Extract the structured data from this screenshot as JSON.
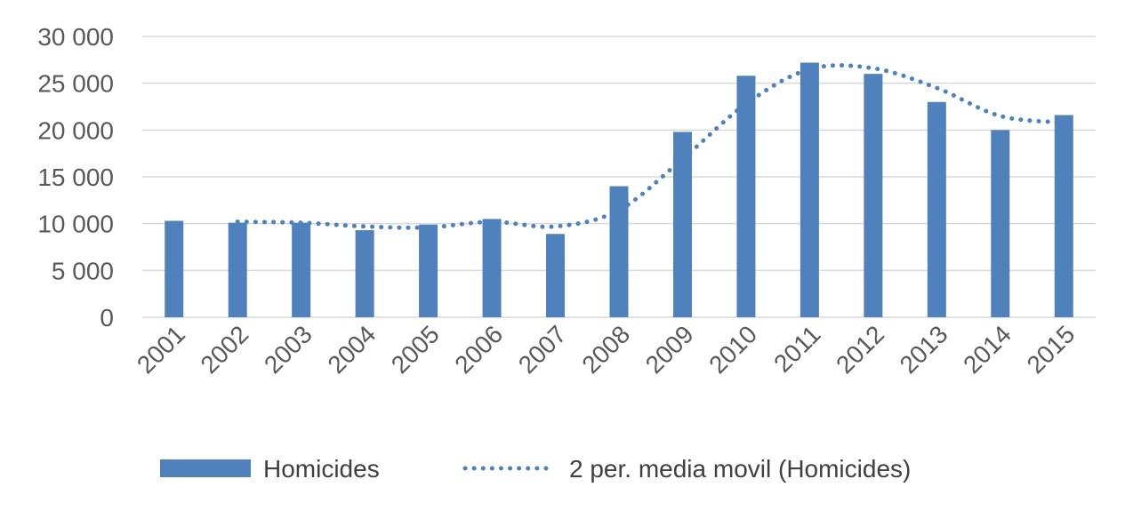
{
  "chart_data": {
    "type": "bar",
    "title": "",
    "xlabel": "",
    "ylabel": "",
    "categories": [
      "2001",
      "2002",
      "2003",
      "2004",
      "2005",
      "2006",
      "2007",
      "2008",
      "2009",
      "2010",
      "2011",
      "2012",
      "2013",
      "2014",
      "2015"
    ],
    "series": [
      {
        "name": "Homicides",
        "type": "bar",
        "color": "#4F81BD",
        "values": [
          10300,
          10100,
          10100,
          9300,
          9900,
          10500,
          8900,
          14000,
          19800,
          25800,
          27200,
          26000,
          23000,
          20000,
          21600
        ]
      },
      {
        "name": "2 per. media movil (Homicides)",
        "type": "line",
        "style": "dotted",
        "color": "#4F81BD",
        "values": [
          null,
          10200,
          10100,
          9700,
          9600,
          10200,
          9700,
          11450,
          16900,
          22800,
          26500,
          26600,
          24500,
          21500,
          20800
        ]
      }
    ],
    "ylim": [
      0,
      30000
    ],
    "yticks": [
      0,
      5000,
      10000,
      15000,
      20000,
      25000,
      30000
    ],
    "ytick_labels": [
      "0",
      "5 000",
      "10 000",
      "15 000",
      "20 000",
      "25 000",
      "30 000"
    ],
    "grid": true,
    "legend_position": "bottom",
    "gridline_color": "#D9D9D9"
  }
}
